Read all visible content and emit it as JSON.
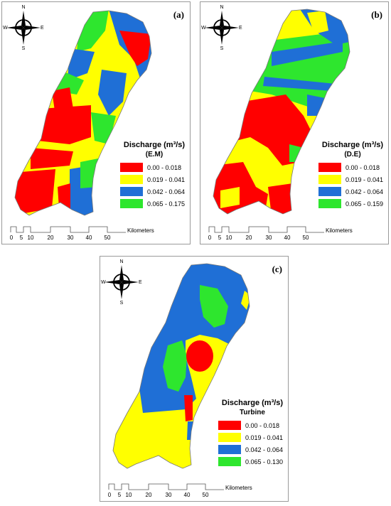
{
  "compass": {
    "n": "N",
    "s": "S",
    "e": "E",
    "w": "W"
  },
  "colors": {
    "red": "#ff0000",
    "yellow": "#ffff00",
    "blue": "#1f6fd6",
    "green": "#2ee62e"
  },
  "legend_title": "Discharge (m³/s)",
  "scale": {
    "ticks": [
      "0",
      "5",
      "10",
      "20",
      "30",
      "40",
      "50"
    ],
    "unit": "Kilometers"
  },
  "panels": {
    "a": {
      "label": "(a)",
      "method": "(E.M)",
      "classes": [
        {
          "range": "0.00 - 0.018",
          "color": "red"
        },
        {
          "range": "0.019 - 0.041",
          "color": "yellow"
        },
        {
          "range": "0.042 - 0.064",
          "color": "blue"
        },
        {
          "range": "0.065 - 0.175",
          "color": "green"
        }
      ]
    },
    "b": {
      "label": "(b)",
      "method": "(D.E)",
      "classes": [
        {
          "range": "0.00 - 0.018",
          "color": "red"
        },
        {
          "range": "0.019 - 0.041",
          "color": "yellow"
        },
        {
          "range": "0.042 - 0.064",
          "color": "blue"
        },
        {
          "range": "0.065 - 0.159",
          "color": "green"
        }
      ]
    },
    "c": {
      "label": "(c)",
      "method": "Turbine",
      "classes": [
        {
          "range": "0.00 - 0.018",
          "color": "red"
        },
        {
          "range": "0.019 - 0.041",
          "color": "yellow"
        },
        {
          "range": "0.042 - 0.064",
          "color": "blue"
        },
        {
          "range": "0.065 - 0.130",
          "color": "green"
        }
      ]
    }
  }
}
